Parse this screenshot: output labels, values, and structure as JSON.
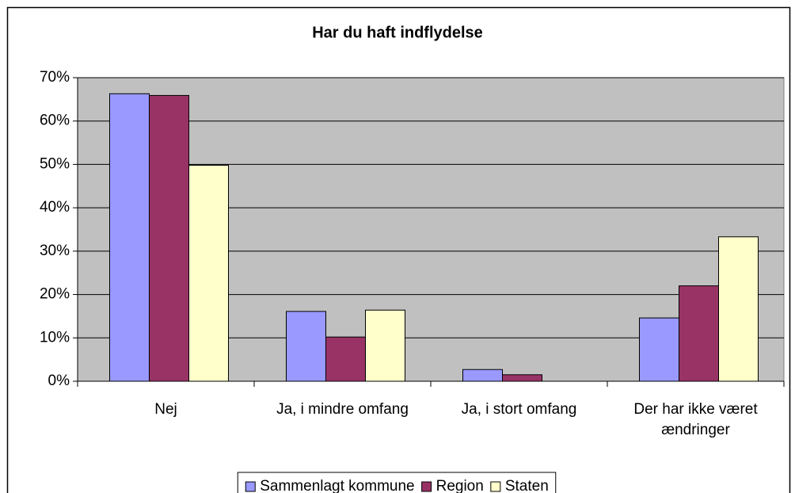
{
  "chart_data": {
    "type": "bar",
    "title": "Har du haft indflydelse",
    "categories": [
      "Nej",
      "Ja, i mindre omfang",
      "Ja, i stort omfang",
      "Der har ikke været ændringer"
    ],
    "series": [
      {
        "name": "Sammenlagt kommune",
        "color": "#9999ff",
        "values": [
          66.3,
          16.1,
          2.7,
          14.6
        ]
      },
      {
        "name": "Region",
        "color": "#993366",
        "values": [
          65.9,
          10.2,
          1.5,
          22.0
        ]
      },
      {
        "name": "Staten",
        "color": "#ffffcc",
        "values": [
          49.8,
          16.4,
          0,
          33.3
        ]
      }
    ],
    "ylim": [
      0,
      70
    ],
    "yticks": [
      {
        "value": 0,
        "label": "0%"
      },
      {
        "value": 10,
        "label": "10%"
      },
      {
        "value": 20,
        "label": "20%"
      },
      {
        "value": 30,
        "label": "30%"
      },
      {
        "value": 40,
        "label": "40%"
      },
      {
        "value": 50,
        "label": "50%"
      },
      {
        "value": 60,
        "label": "60%"
      },
      {
        "value": 70,
        "label": "70%"
      }
    ],
    "grid": true,
    "legend": "bottom"
  }
}
